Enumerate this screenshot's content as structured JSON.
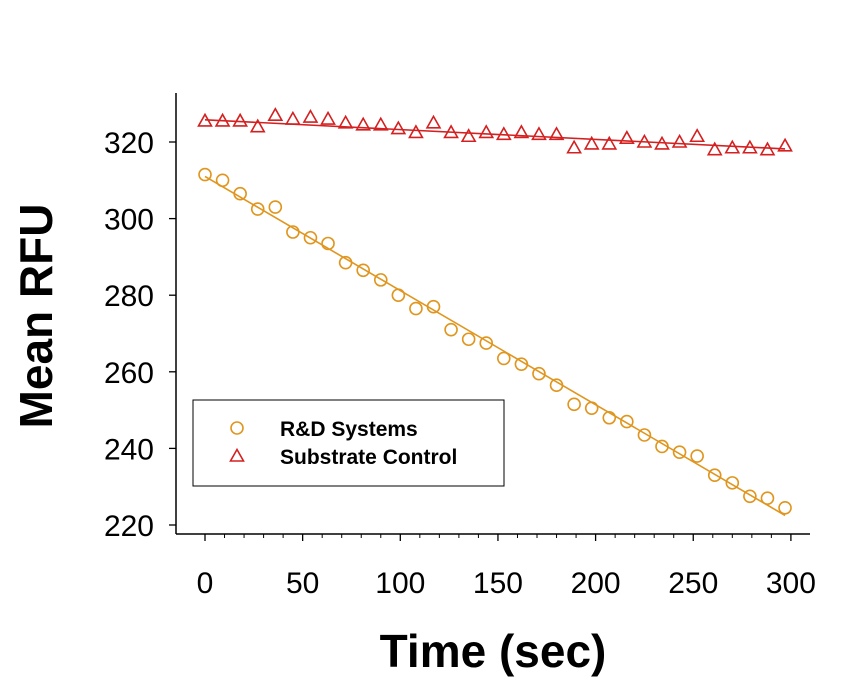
{
  "chart_data": {
    "type": "scatter",
    "title": "",
    "xlabel": "Time (sec)",
    "ylabel": "Mean RFU",
    "xlim": [
      -7,
      310
    ],
    "ylim": [
      217,
      331
    ],
    "xticks": [
      0,
      50,
      100,
      150,
      200,
      250,
      300
    ],
    "yticks": [
      220,
      240,
      260,
      280,
      300,
      320
    ],
    "xtick_labels": [
      "0",
      "50",
      "100",
      "150",
      "200",
      "250",
      "300"
    ],
    "ytick_labels": [
      "220",
      "240",
      "260",
      "280",
      "300",
      "320"
    ],
    "x_minor_ticks": [
      10,
      20,
      30,
      40,
      60,
      70,
      80,
      90,
      110,
      120,
      130,
      140,
      160,
      170,
      180,
      190,
      210,
      220,
      230,
      240,
      260,
      270,
      280,
      290
    ],
    "grid": false,
    "legend_position": "lower-left",
    "series": [
      {
        "name": "R&D Systems",
        "marker": "circle",
        "color": "#E0961E",
        "x": [
          0,
          9,
          18,
          27,
          36,
          45,
          54,
          63,
          72,
          81,
          90,
          99,
          108,
          117,
          126,
          135,
          144,
          153,
          162,
          171,
          180,
          189,
          198,
          207,
          216,
          225,
          234,
          243,
          252,
          261,
          270,
          279,
          288,
          297
        ],
        "y": [
          311.5,
          310,
          306.5,
          302.5,
          303,
          296.5,
          295,
          293.5,
          288.5,
          286.5,
          284,
          280,
          276.5,
          277,
          271,
          268.5,
          267.5,
          263.5,
          262,
          259.5,
          256.5,
          251.5,
          250.5,
          248,
          247,
          243.5,
          240.5,
          239,
          238,
          233,
          231,
          227.5,
          227,
          224.5
        ],
        "fit": {
          "x": [
            0,
            297
          ],
          "y": [
            311,
            222.5
          ]
        }
      },
      {
        "name": "Substrate Control",
        "marker": "triangle",
        "color": "#D42020",
        "x": [
          0,
          9,
          18,
          27,
          36,
          45,
          54,
          63,
          72,
          81,
          90,
          99,
          108,
          117,
          126,
          135,
          144,
          153,
          162,
          171,
          180,
          189,
          198,
          207,
          216,
          225,
          234,
          243,
          252,
          261,
          270,
          279,
          288,
          297
        ],
        "y": [
          325.5,
          325.5,
          325.5,
          324,
          327,
          326,
          326.5,
          326,
          325,
          324.5,
          324.5,
          323.5,
          322.5,
          325,
          322.5,
          321.5,
          322.5,
          322,
          322.5,
          322,
          322,
          318.5,
          319.5,
          319.5,
          321,
          320,
          319.5,
          320,
          321.5,
          318,
          318.5,
          318.5,
          318,
          319
        ],
        "fit": {
          "x": [
            0,
            297
          ],
          "y": [
            325.8,
            318.2
          ]
        }
      }
    ]
  }
}
